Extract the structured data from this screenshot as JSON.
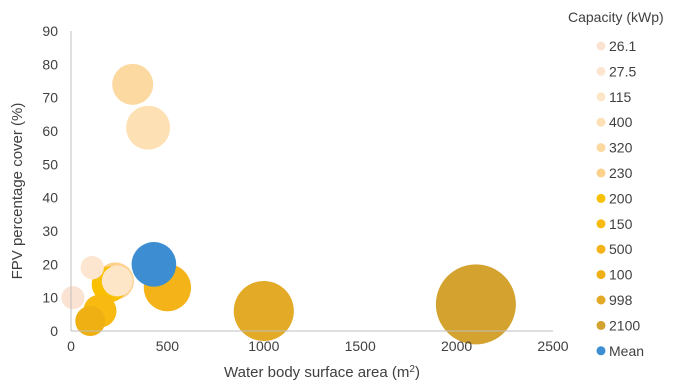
{
  "chart_data": {
    "type": "scatter",
    "subtype": "bubble",
    "xlabel": "Water body surface area (m",
    "xlabel_superscript": "2",
    "xlabel_suffix": ")",
    "ylabel": "FPV percentage cover (%)",
    "xlim": [
      0,
      2500
    ],
    "ylim": [
      0,
      90
    ],
    "x_ticks": [
      0,
      500,
      1000,
      1500,
      2000,
      2500
    ],
    "y_ticks": [
      0,
      10,
      20,
      30,
      40,
      50,
      60,
      70,
      80,
      90
    ],
    "grid": false,
    "legend": {
      "title": "Capacity (kWp)",
      "placement": "right"
    },
    "series": [
      {
        "name": "26.1",
        "color": "#FBE3D4",
        "points": [
          {
            "x": 10,
            "y": 10,
            "size": 26.1
          }
        ]
      },
      {
        "name": "27.5",
        "color": "#FCE6D0",
        "points": [
          {
            "x": 110,
            "y": 19,
            "size": 27.5
          }
        ]
      },
      {
        "name": "115",
        "color": "#FDE5C8",
        "points": [
          {
            "x": 240,
            "y": 15,
            "size": 115
          }
        ]
      },
      {
        "name": "400",
        "color": "#FDE0B3",
        "points": [
          {
            "x": 400,
            "y": 61,
            "size": 400
          }
        ]
      },
      {
        "name": "320",
        "color": "#FCD9A0",
        "points": [
          {
            "x": 320,
            "y": 74,
            "size": 320
          }
        ]
      },
      {
        "name": "230",
        "color": "#FCD18C",
        "points": [
          {
            "x": 230,
            "y": 15,
            "size": 230
          }
        ]
      },
      {
        "name": "200",
        "color": "#F9C000",
        "points": [
          {
            "x": 200,
            "y": 14,
            "size": 200
          }
        ]
      },
      {
        "name": "150",
        "color": "#F8BA10",
        "points": [
          {
            "x": 150,
            "y": 6,
            "size": 150
          }
        ]
      },
      {
        "name": "500",
        "color": "#F3B319",
        "points": [
          {
            "x": 500,
            "y": 13,
            "size": 500
          }
        ]
      },
      {
        "name": "100",
        "color": "#EEB013",
        "points": [
          {
            "x": 100,
            "y": 3,
            "size": 100
          }
        ]
      },
      {
        "name": "998",
        "color": "#E2AA26",
        "points": [
          {
            "x": 1000,
            "y": 6,
            "size": 998
          }
        ]
      },
      {
        "name": "2100",
        "color": "#D4A22E",
        "points": [
          {
            "x": 2100,
            "y": 8,
            "size": 2100
          }
        ]
      },
      {
        "name": "Mean",
        "color": "#3C8DD1",
        "points": [
          {
            "x": 430,
            "y": 20,
            "size": 420
          }
        ]
      }
    ]
  }
}
